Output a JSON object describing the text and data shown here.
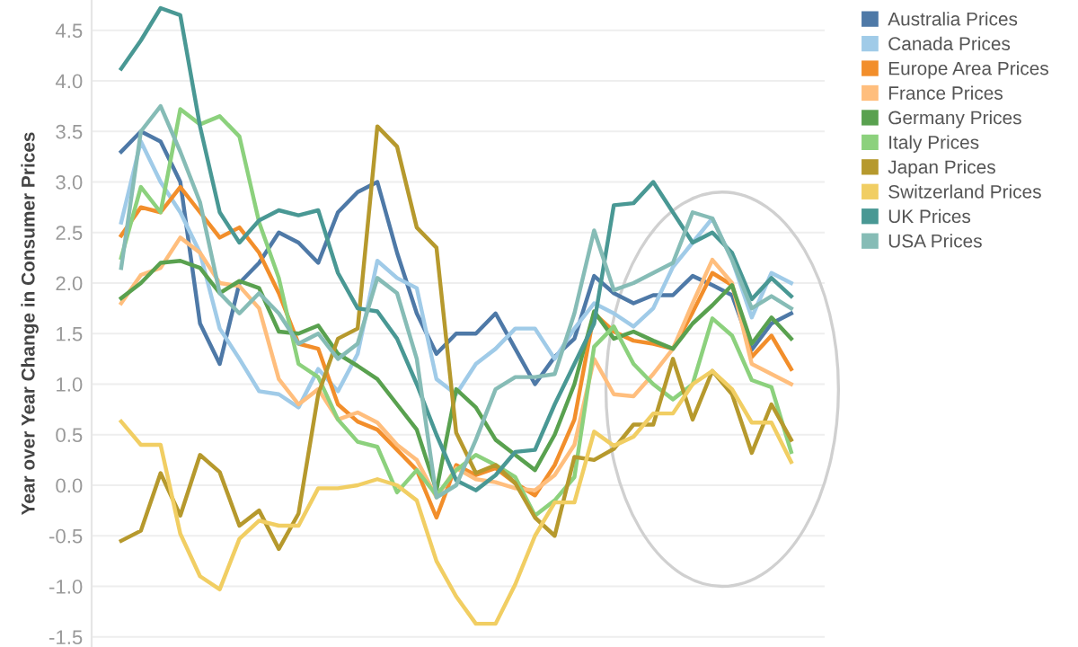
{
  "chart_data": {
    "type": "line",
    "ylabel": "Year over Year Change in Consumer Prices",
    "categories": [
      null,
      null,
      null,
      null,
      null,
      null,
      null,
      null,
      null,
      null,
      null,
      null,
      null,
      null,
      null,
      null,
      null,
      null,
      null,
      null,
      null,
      null,
      null,
      null,
      null,
      null,
      null,
      null,
      null,
      null,
      null,
      null,
      null,
      null,
      null
    ],
    "series": [
      {
        "name": "Australia Prices",
        "color": "#4e79a7",
        "values": [
          3.3,
          3.5,
          3.4,
          3.0,
          1.6,
          1.2,
          2.0,
          2.2,
          2.5,
          2.4,
          2.2,
          2.7,
          2.9,
          3.0,
          2.3,
          1.7,
          1.3,
          1.5,
          1.5,
          1.7,
          1.35,
          1.0,
          1.27,
          1.45,
          2.07,
          1.9,
          1.8,
          1.88,
          1.88,
          2.07,
          1.98,
          1.88,
          1.34,
          1.6,
          1.7
        ]
      },
      {
        "name": "Canada Prices",
        "color": "#a0cbe8",
        "values": [
          2.6,
          3.4,
          3.0,
          2.7,
          2.3,
          1.55,
          1.25,
          0.93,
          0.9,
          0.77,
          1.15,
          0.93,
          1.3,
          2.22,
          2.05,
          1.95,
          1.05,
          0.9,
          1.2,
          1.35,
          1.55,
          1.55,
          1.25,
          1.55,
          1.8,
          1.7,
          1.57,
          1.75,
          2.16,
          2.4,
          2.64,
          2.23,
          1.66,
          2.1,
          2.0
        ]
      },
      {
        "name": "Europe Area Prices",
        "color": "#f28e2b",
        "values": [
          2.47,
          2.75,
          2.7,
          2.95,
          2.7,
          2.45,
          2.55,
          2.3,
          1.9,
          1.4,
          1.35,
          0.8,
          0.63,
          0.55,
          0.35,
          0.15,
          -0.32,
          0.2,
          0.1,
          0.17,
          0.02,
          -0.1,
          0.2,
          0.65,
          1.7,
          1.52,
          1.43,
          1.4,
          1.35,
          1.71,
          2.1,
          1.98,
          1.27,
          1.48,
          1.15
        ]
      },
      {
        "name": "France Prices",
        "color": "#ffbe7d",
        "values": [
          1.8,
          2.08,
          2.15,
          2.45,
          2.3,
          2.0,
          1.97,
          1.75,
          1.05,
          0.8,
          0.95,
          0.65,
          0.72,
          0.62,
          0.4,
          0.25,
          -0.12,
          0.17,
          0.06,
          0.03,
          -0.03,
          -0.05,
          0.1,
          0.4,
          1.25,
          0.9,
          0.88,
          1.1,
          1.35,
          1.8,
          2.23,
          2.0,
          1.2,
          1.1,
          1.0
        ]
      },
      {
        "name": "Germany Prices",
        "color": "#59a14f",
        "values": [
          1.85,
          2.0,
          2.2,
          2.22,
          2.15,
          1.9,
          2.02,
          1.95,
          1.52,
          1.5,
          1.58,
          1.3,
          1.18,
          1.05,
          0.8,
          0.55,
          -0.05,
          0.95,
          0.77,
          0.45,
          0.3,
          0.15,
          0.5,
          1.0,
          1.72,
          1.45,
          1.52,
          1.43,
          1.35,
          1.6,
          1.78,
          1.98,
          1.4,
          1.66,
          1.45
        ]
      },
      {
        "name": "Italy Prices",
        "color": "#8cd17d",
        "values": [
          2.25,
          2.95,
          2.7,
          3.72,
          3.57,
          3.65,
          3.45,
          2.6,
          2.05,
          1.2,
          1.07,
          0.65,
          0.43,
          0.38,
          -0.07,
          0.15,
          -0.1,
          0.15,
          0.3,
          0.2,
          0.08,
          -0.3,
          -0.15,
          0.08,
          1.37,
          1.57,
          1.2,
          1.0,
          0.85,
          1.0,
          1.65,
          1.48,
          1.04,
          0.97,
          0.33
        ]
      },
      {
        "name": "Japan Prices",
        "color": "#b6992d",
        "values": [
          -0.55,
          -0.45,
          0.12,
          -0.3,
          0.3,
          0.13,
          -0.4,
          -0.25,
          -0.63,
          -0.28,
          0.9,
          1.45,
          1.55,
          3.55,
          3.35,
          2.55,
          2.35,
          0.52,
          0.12,
          0.2,
          0.02,
          -0.32,
          -0.5,
          0.28,
          0.25,
          0.36,
          0.6,
          0.6,
          1.25,
          0.65,
          1.13,
          0.9,
          0.32,
          0.8,
          0.45
        ]
      },
      {
        "name": "Switzerland Prices",
        "color": "#f1ce63",
        "values": [
          0.63,
          0.4,
          0.4,
          -0.48,
          -0.9,
          -1.03,
          -0.53,
          -0.35,
          -0.4,
          -0.4,
          -0.03,
          -0.03,
          0.0,
          0.06,
          0.0,
          -0.15,
          -0.75,
          -1.1,
          -1.37,
          -1.37,
          -0.98,
          -0.5,
          -0.17,
          -0.17,
          0.53,
          0.39,
          0.48,
          0.71,
          0.71,
          1.0,
          1.13,
          0.95,
          0.62,
          0.62,
          0.23
        ]
      },
      {
        "name": "UK Prices",
        "color": "#499894",
        "values": [
          4.12,
          4.4,
          4.72,
          4.65,
          3.55,
          2.7,
          2.4,
          2.62,
          2.72,
          2.67,
          2.72,
          2.1,
          1.75,
          1.72,
          1.45,
          1.0,
          0.5,
          0.05,
          -0.05,
          0.1,
          0.33,
          0.35,
          0.8,
          1.2,
          1.6,
          2.77,
          2.79,
          3.0,
          2.7,
          2.4,
          2.5,
          2.3,
          1.84,
          2.05,
          1.87
        ]
      },
      {
        "name": "USA Prices",
        "color": "#86bcb6",
        "values": [
          2.15,
          3.5,
          3.75,
          3.3,
          2.8,
          1.9,
          1.7,
          1.9,
          1.7,
          1.4,
          1.5,
          1.25,
          1.4,
          2.05,
          1.9,
          1.25,
          -0.12,
          0.0,
          0.45,
          0.95,
          1.07,
          1.07,
          1.1,
          1.7,
          2.52,
          1.93,
          2.0,
          2.1,
          2.2,
          2.7,
          2.64,
          2.23,
          1.75,
          1.87,
          1.75
        ]
      }
    ],
    "ylim": [
      -1.6,
      4.8
    ],
    "yticks": [
      {
        "value": -1.5,
        "label": "-1.5"
      },
      {
        "value": -1.0,
        "label": "-1.0"
      },
      {
        "value": -0.5,
        "label": "-0.5"
      },
      {
        "value": 0.0,
        "label": "0.0"
      },
      {
        "value": 0.5,
        "label": "0.5"
      },
      {
        "value": 1.0,
        "label": "1.0"
      },
      {
        "value": 1.5,
        "label": "1.5"
      },
      {
        "value": 2.0,
        "label": "2.0"
      },
      {
        "value": 2.5,
        "label": "2.5"
      },
      {
        "value": 3.0,
        "label": "3.0"
      },
      {
        "value": 3.5,
        "label": "3.5"
      },
      {
        "value": 4.0,
        "label": "4.0"
      },
      {
        "value": 4.5,
        "label": "4.5"
      }
    ],
    "grid": "y",
    "legend": "top right",
    "tick_labels": "y"
  }
}
